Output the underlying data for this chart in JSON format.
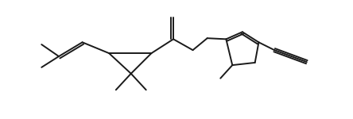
{
  "bg_color": "#ffffff",
  "line_color": "#1a1a1a",
  "line_width": 1.4,
  "figsize": [
    4.44,
    1.5
  ],
  "dpi": 100,
  "xlim": [
    0,
    10
  ],
  "ylim": [
    0.0,
    3.8
  ]
}
